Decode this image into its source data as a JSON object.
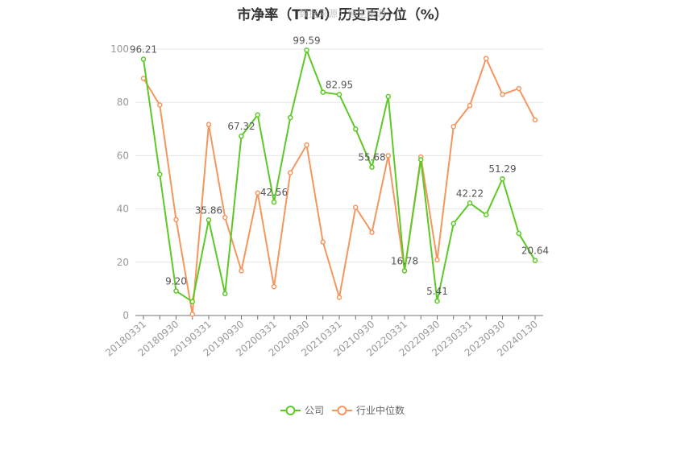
{
  "chart_data": {
    "type": "line",
    "title": "市净率（TTM）历史百分位（%）",
    "watermark": "数据来源：恒生聚源",
    "ylim": [
      0,
      100
    ],
    "yticks": [
      0,
      20,
      40,
      60,
      80,
      100
    ],
    "grid": true,
    "legend_position": "bottom",
    "x": [
      "20180331",
      "20180630",
      "20180930",
      "20181231",
      "20190331",
      "20190630",
      "20190930",
      "20191231",
      "20200331",
      "20200630",
      "20200930",
      "20201231",
      "20210331",
      "20210630",
      "20210930",
      "20211231",
      "20220331",
      "20220630",
      "20220930",
      "20221231",
      "20230331",
      "20230630",
      "20230930",
      "20231231",
      "20240130"
    ],
    "x_tick_labels": [
      "20180331",
      "",
      "20180930",
      "",
      "20190331",
      "",
      "20190930",
      "",
      "20200331",
      "",
      "20200930",
      "",
      "20210331",
      "",
      "20210930",
      "",
      "20220331",
      "",
      "20220930",
      "",
      "20230331",
      "",
      "20230930",
      "",
      "20240130"
    ],
    "series": [
      {
        "name": "公司",
        "color": "#5cc925",
        "values": [
          96.21,
          53.0,
          9.2,
          5.2,
          35.86,
          8.2,
          67.32,
          75.3,
          42.56,
          74.3,
          99.59,
          83.8,
          82.95,
          70.0,
          55.68,
          82.2,
          16.78,
          58.5,
          5.41,
          34.5,
          42.22,
          37.8,
          51.29,
          30.8,
          20.64
        ],
        "labels": [
          "96.21",
          "",
          "9.20",
          "",
          "35.86",
          "",
          "67.32",
          "",
          "42.56",
          "",
          "99.59",
          "",
          "82.95",
          "",
          "55.68",
          "",
          "16.78",
          "",
          "5.41",
          "",
          "42.22",
          "",
          "51.29",
          "",
          "20.64"
        ]
      },
      {
        "name": "行业中位数",
        "color": "#f5965f",
        "values": [
          89.0,
          79.0,
          36.0,
          0.5,
          71.7,
          36.8,
          16.8,
          46.0,
          10.8,
          53.6,
          64.0,
          27.6,
          6.8,
          40.6,
          31.2,
          60.0,
          16.8,
          59.5,
          20.9,
          70.9,
          78.8,
          96.5,
          83.0,
          85.2,
          73.4
        ]
      }
    ]
  }
}
